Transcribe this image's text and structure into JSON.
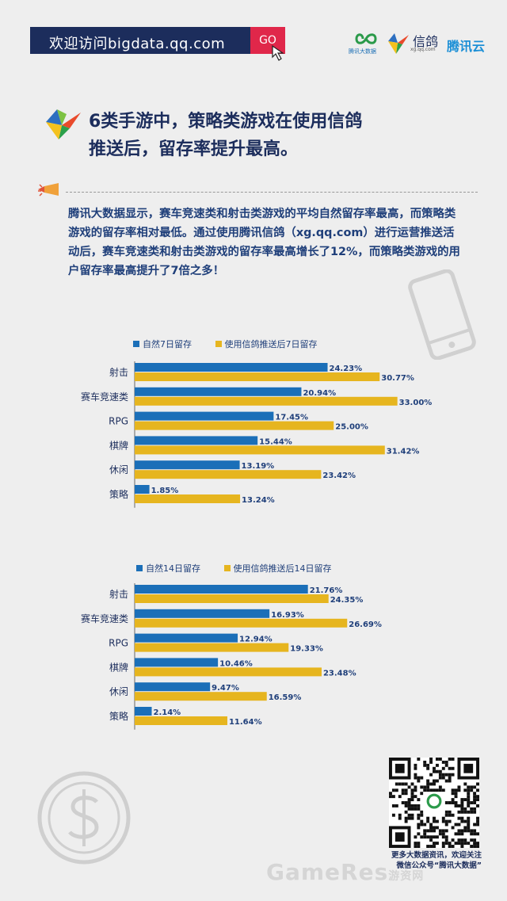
{
  "banner": {
    "url_text": "欢迎访问bigdata.qq.com",
    "go_label": "GO"
  },
  "logos": {
    "dsj_text": "腾讯大数据",
    "xg_name": "信鸽",
    "xg_url": "xg.qq.com",
    "txy_name": "腾讯云"
  },
  "headline": {
    "line1": "6类手游中，策略类游戏在使用信鸽",
    "line2": "推送后，留存率提升最高。"
  },
  "paragraph": "腾讯大数据显示，赛车竞速类和射击类游戏的平均自然留存率最高，而策略类游戏的留存率相对最低。通过使用腾讯信鸽（xg.qq.com）进行运营推送活动后，赛车竞速类和射击类游戏的留存率最高增长了12%，而策略类游戏的用户留存率最高提升了7倍之多！",
  "colors": {
    "blue": "#1b6fb8",
    "gold": "#e6b51f",
    "navy": "#1c2d5c",
    "red": "#e0274a"
  },
  "chart_data": [
    {
      "type": "bar",
      "orientation": "horizontal",
      "categories": [
        "射击",
        "赛车竞速类",
        "RPG",
        "棋牌",
        "休闲",
        "策略"
      ],
      "series": [
        {
          "name": "自然7日留存",
          "values": [
            24.23,
            20.94,
            17.45,
            15.44,
            13.19,
            1.85
          ],
          "labels": [
            "24.23%",
            "20.94%",
            "17.45%",
            "15.44%",
            "13.19%",
            "1.85%"
          ]
        },
        {
          "name": "使用信鸽推送后7日留存",
          "values": [
            30.77,
            33.0,
            25.0,
            31.42,
            23.42,
            13.24
          ],
          "labels": [
            "30.77%",
            "33.00%",
            "25.00%",
            "31.42%",
            "23.42%",
            "13.24%"
          ]
        }
      ],
      "legend": "top-left",
      "grid": false
    },
    {
      "type": "bar",
      "orientation": "horizontal",
      "categories": [
        "射击",
        "赛车竞速类",
        "RPG",
        "棋牌",
        "休闲",
        "策略"
      ],
      "series": [
        {
          "name": "自然14日留存",
          "values": [
            21.76,
            16.93,
            12.94,
            10.46,
            9.47,
            2.14
          ],
          "labels": [
            "21.76%",
            "16.93%",
            "12.94%",
            "10.46%",
            "9.47%",
            "2.14%"
          ]
        },
        {
          "name": "使用信鸽推送后14日留存",
          "values": [
            24.35,
            26.69,
            19.33,
            23.48,
            16.59,
            11.64
          ],
          "labels": [
            "24.35%",
            "26.69%",
            "19.33%",
            "23.48%",
            "16.59%",
            "11.64%"
          ]
        }
      ],
      "legend": "top-left",
      "grid": false
    }
  ],
  "qr": {
    "caption_line1": "更多大数据资讯，欢迎关注",
    "caption_line2": "微信公众号“腾讯大数据”"
  },
  "watermark": {
    "text_main": "GameRes",
    "text_small": "游资网"
  }
}
